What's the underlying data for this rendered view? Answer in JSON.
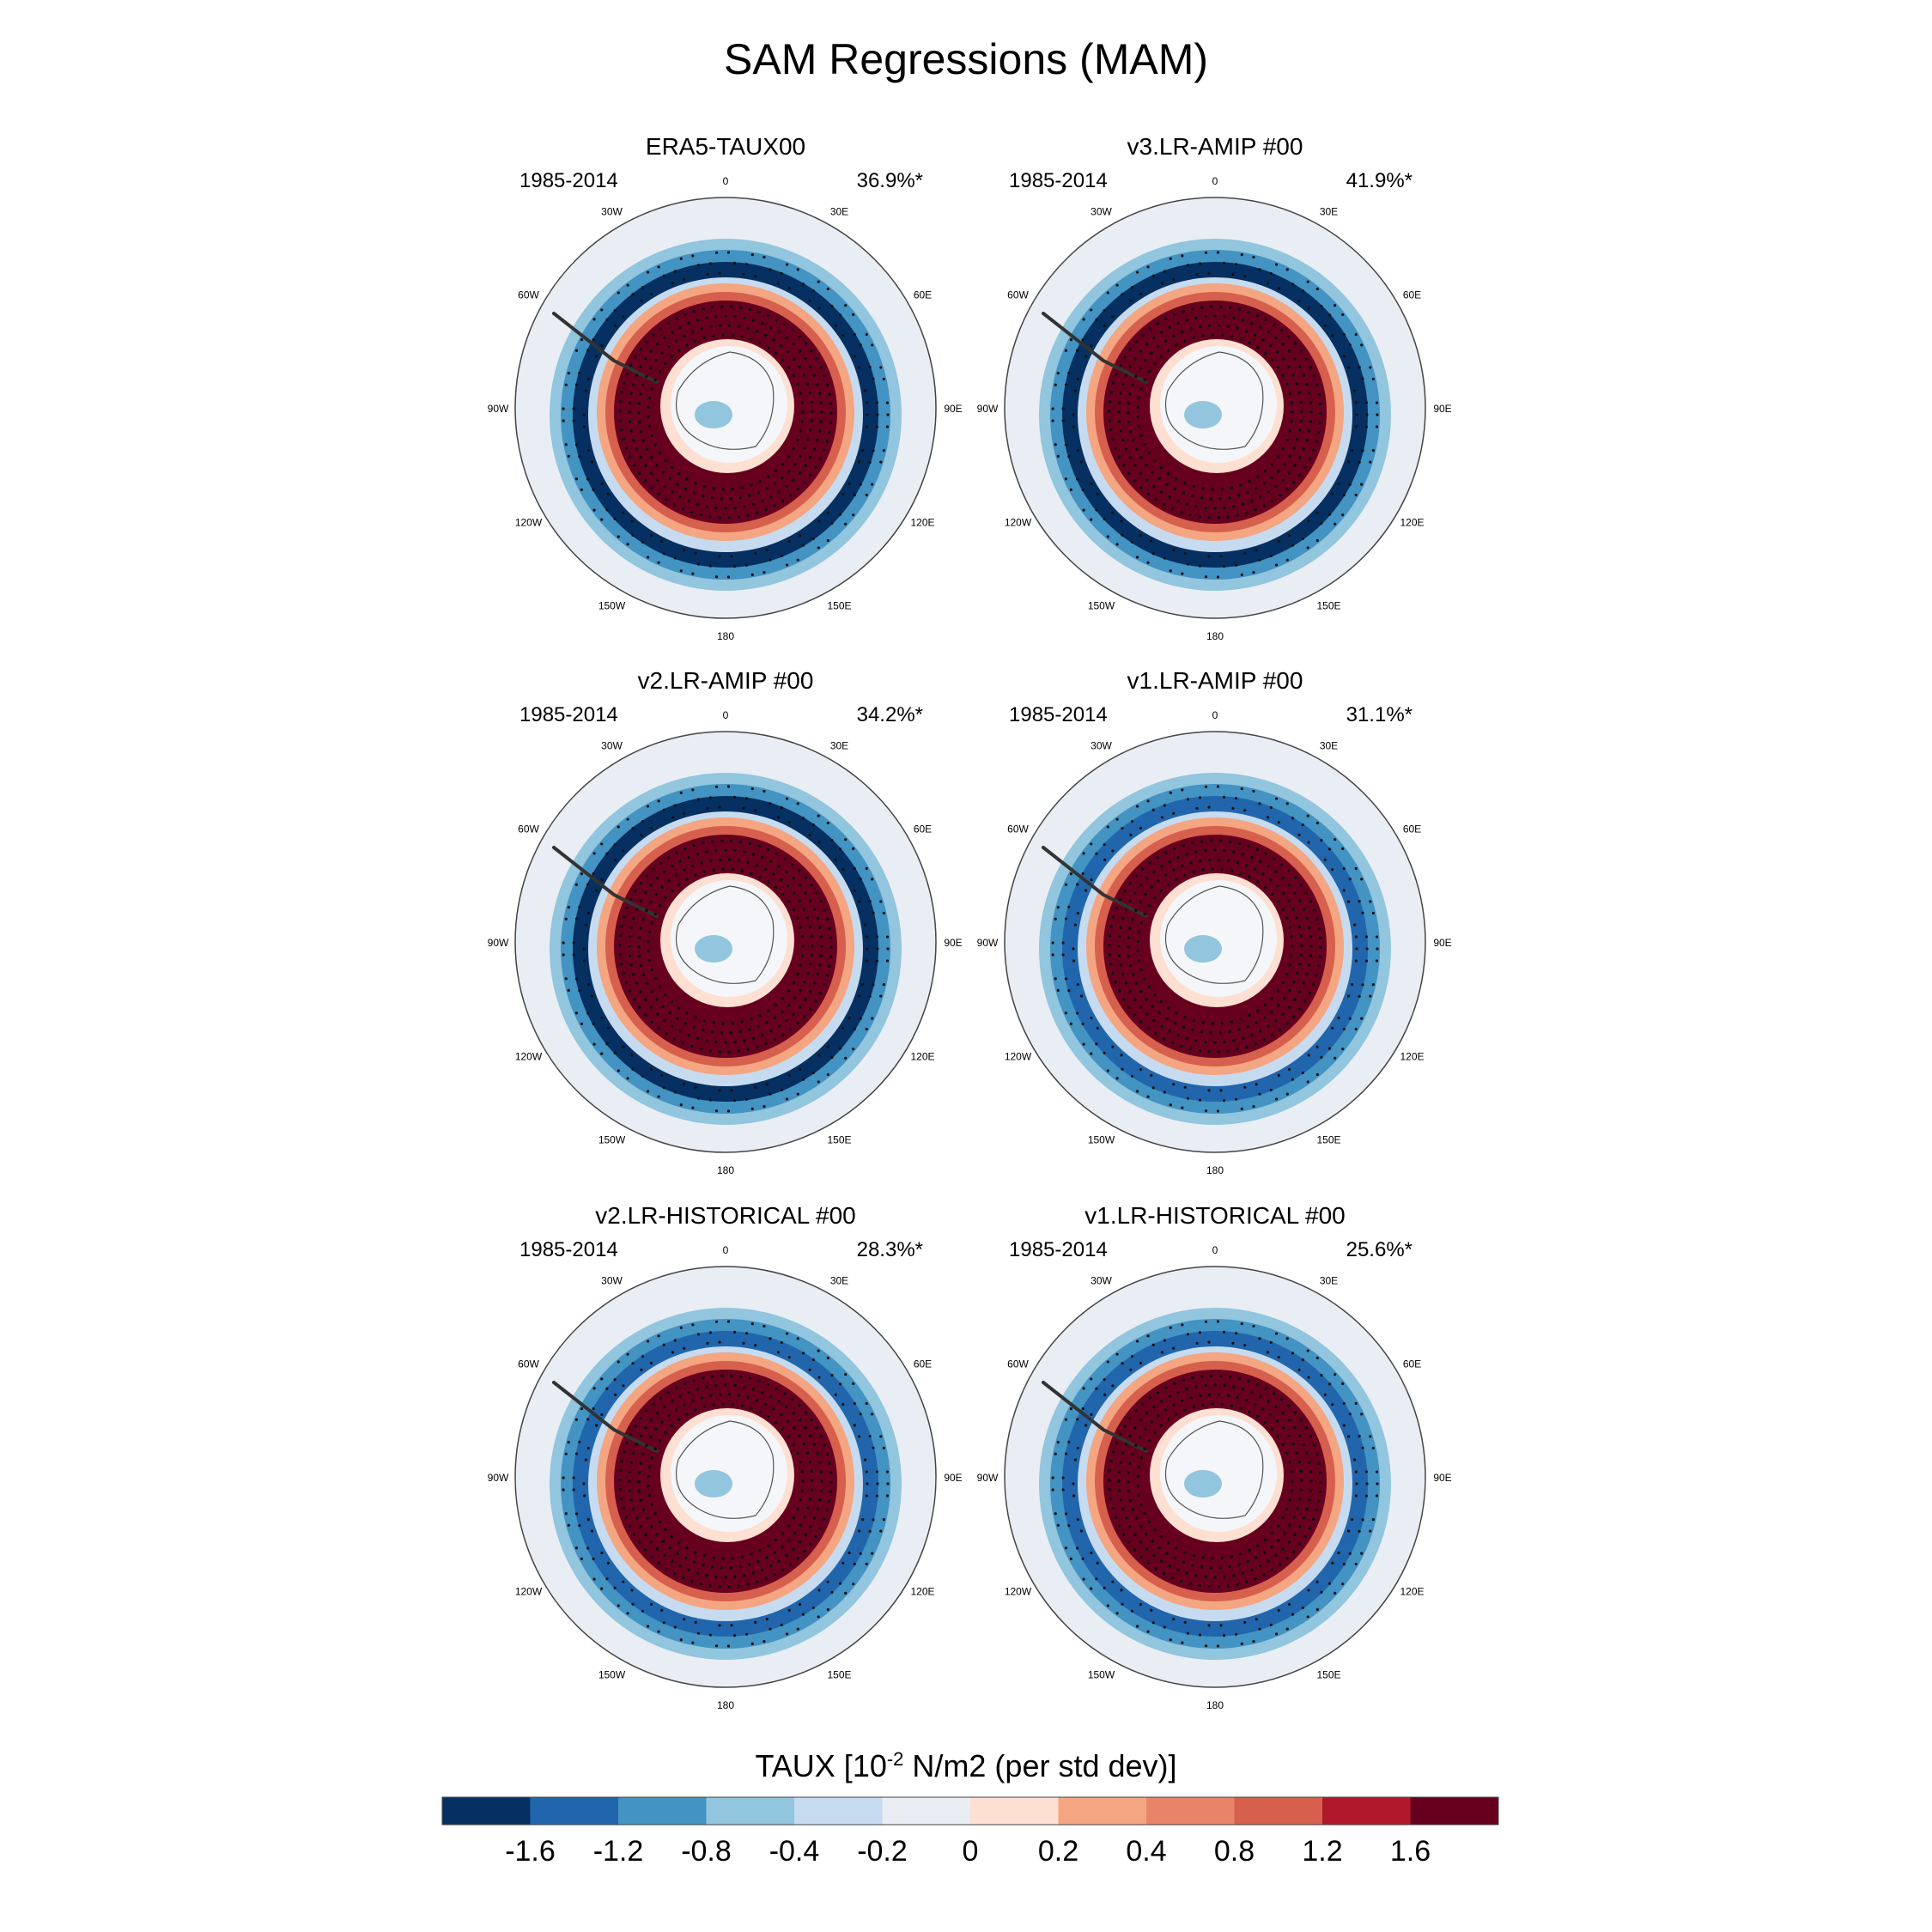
{
  "chart_data": {
    "type": "heatmap",
    "title": "SAM Regressions (MAM)",
    "projection": "south polar stereographic",
    "longitude_labels": [
      "0",
      "30E",
      "60E",
      "90E",
      "120E",
      "150E",
      "180",
      "150W",
      "120W",
      "90W",
      "60W",
      "30W"
    ],
    "panels": [
      {
        "title": "ERA5-TAUX00",
        "period": "1985-2014",
        "explained_variance": "36.9%*",
        "ring_max": 1.6,
        "outer_min": -1.6
      },
      {
        "title": "v3.LR-AMIP  #00",
        "period": "1985-2014",
        "explained_variance": "41.9%*",
        "ring_max": 1.6,
        "outer_min": -1.6
      },
      {
        "title": "v2.LR-AMIP  #00",
        "period": "1985-2014",
        "explained_variance": "34.2%*",
        "ring_max": 1.6,
        "outer_min": -1.6
      },
      {
        "title": "v1.LR-AMIP  #00",
        "period": "1985-2014",
        "explained_variance": "31.1%*",
        "ring_max": 1.6,
        "outer_min": -1.2
      },
      {
        "title": "v2.LR-HISTORICAL  #00",
        "period": "1985-2014",
        "explained_variance": "28.3%*",
        "ring_max": 1.6,
        "outer_min": -1.2
      },
      {
        "title": "v1.LR-HISTORICAL  #00",
        "period": "1985-2014",
        "explained_variance": "25.6%*",
        "ring_max": 1.6,
        "outer_min": -1.2
      }
    ],
    "colorbar": {
      "title_prefix": "TAUX [10",
      "title_exponent": "-2",
      "title_suffix": " N/m2 (per std dev)]",
      "labels": [
        "-1.6",
        "-1.2",
        "-0.8",
        "-0.4",
        "-0.2",
        "0",
        "0.2",
        "0.4",
        "0.8",
        "1.2",
        "1.6"
      ],
      "colors": [
        "#053061",
        "#2166ac",
        "#4393c3",
        "#92c5de",
        "#c6dbef",
        "#e8eef4",
        "#fde0d2",
        "#f4a582",
        "#e8846a",
        "#d6604d",
        "#b2182b",
        "#67001f"
      ]
    }
  }
}
